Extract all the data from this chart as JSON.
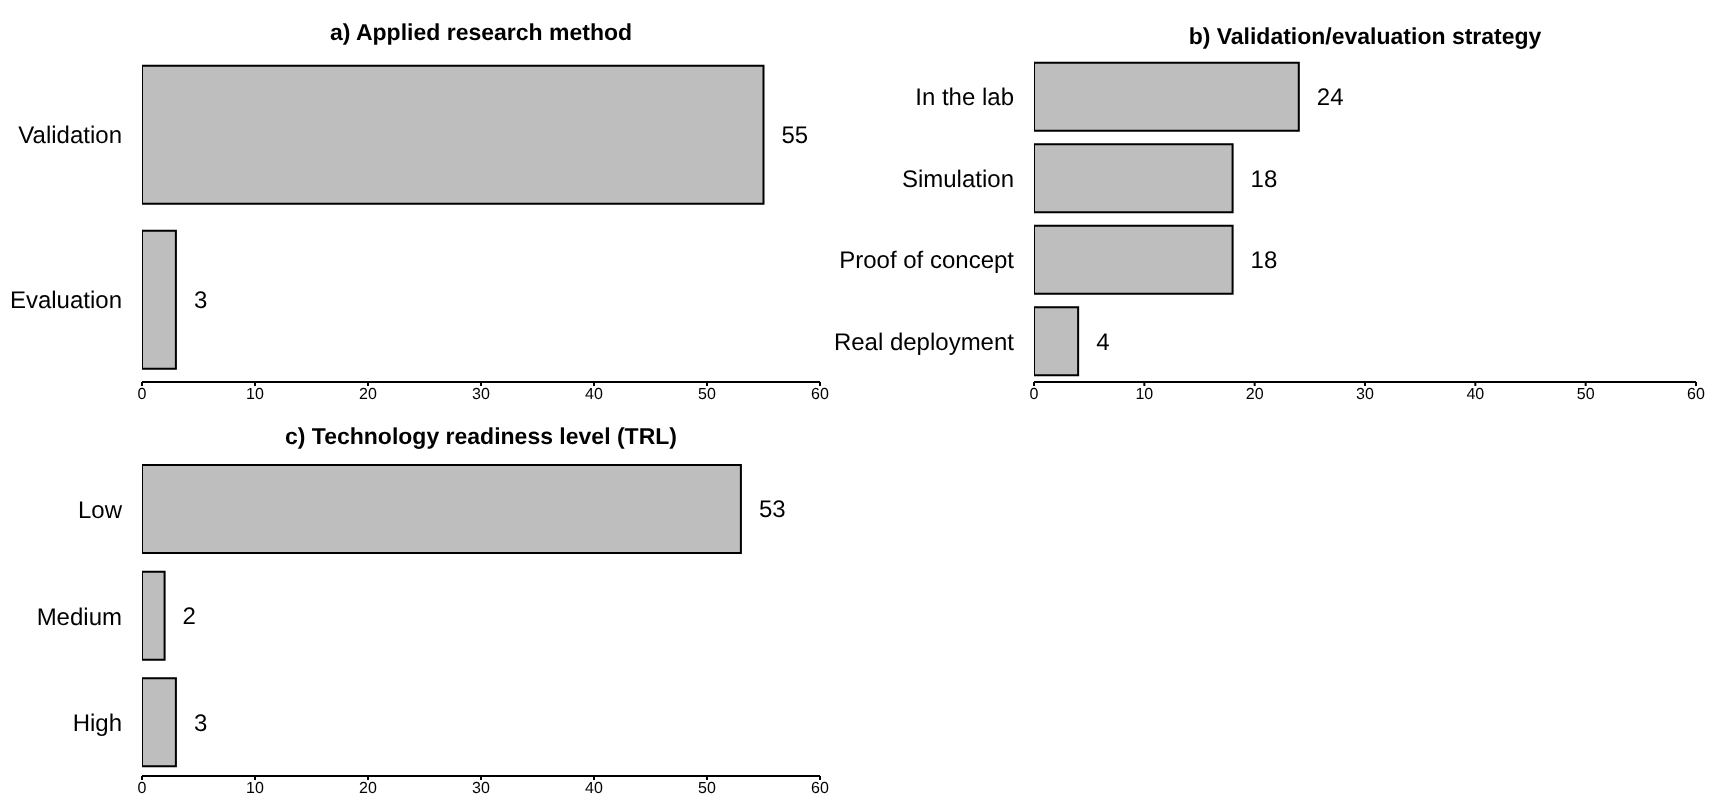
{
  "chart_data": [
    {
      "type": "bar",
      "orientation": "horizontal",
      "title": "a) Applied research method",
      "categories": [
        "Validation",
        "Evaluation"
      ],
      "values": [
        55,
        3
      ],
      "color": "#bebebe",
      "xlim": [
        0,
        60
      ],
      "xticks": [
        0,
        10,
        20,
        30,
        40,
        50,
        60
      ],
      "data_labels": true
    },
    {
      "type": "bar",
      "orientation": "horizontal",
      "title": "b) Validation/evaluation strategy",
      "categories": [
        "In the lab",
        "Simulation",
        "Proof of concept",
        "Real deployment"
      ],
      "values": [
        24,
        18,
        18,
        4
      ],
      "color": "#bebebe",
      "xlim": [
        0,
        60
      ],
      "xticks": [
        0,
        10,
        20,
        30,
        40,
        50,
        60
      ],
      "data_labels": true
    },
    {
      "type": "bar",
      "orientation": "horizontal",
      "title": "c) Technology readiness level (TRL)",
      "categories": [
        "Low",
        "Medium",
        "High"
      ],
      "values": [
        53,
        2,
        3
      ],
      "color": "#bebebe",
      "xlim": [
        0,
        60
      ],
      "xticks": [
        0,
        10,
        20,
        30,
        40,
        50,
        60
      ],
      "data_labels": true
    }
  ]
}
